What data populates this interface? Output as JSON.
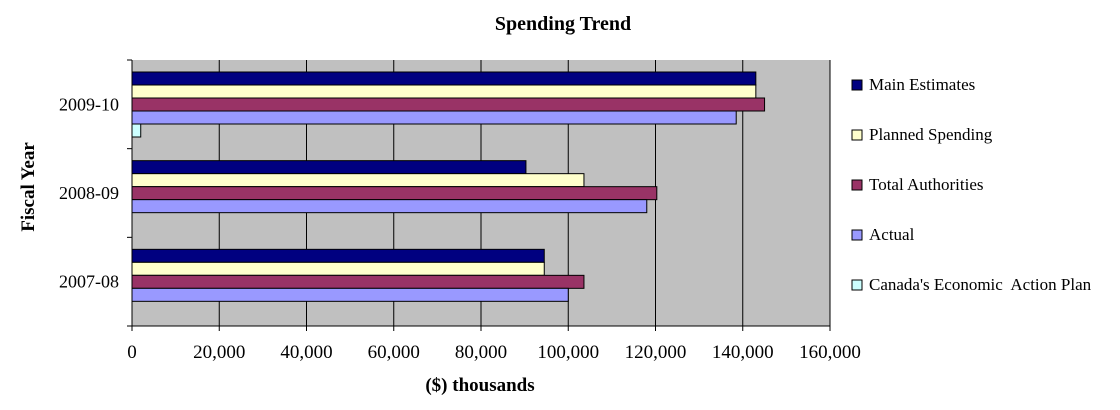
{
  "chart_data": {
    "type": "bar",
    "orientation": "horizontal",
    "title": "Spending Trend",
    "xlabel": "($) thousands",
    "ylabel": "Fiscal Year",
    "categories": [
      "2007-08",
      "2008-09",
      "2009-10"
    ],
    "series": [
      {
        "name": "Main Estimates",
        "color": "#000080",
        "values": [
          94500,
          90300,
          143000
        ]
      },
      {
        "name": "Planned Spending",
        "color": "#FFFFCC",
        "values": [
          94500,
          103600,
          143000
        ]
      },
      {
        "name": "Total Authorities",
        "color": "#993366",
        "values": [
          103600,
          120300,
          145000
        ]
      },
      {
        "name": "Actual",
        "color": "#9999FF",
        "values": [
          100000,
          118000,
          138500
        ]
      },
      {
        "name": "Canada's Economic  Action Plan",
        "color": "#CCFFFF",
        "values": [
          0,
          0,
          2000
        ]
      }
    ],
    "xlim": [
      0,
      160000
    ],
    "xticks": [
      0,
      20000,
      40000,
      60000,
      80000,
      100000,
      120000,
      140000,
      160000
    ],
    "xtick_labels": [
      "0",
      "20,000",
      "40,000",
      "60,000",
      "80,000",
      "100,000",
      "120,000",
      "140,000",
      "160,000"
    ],
    "grid": "vertical major",
    "plot_background": "#C0C0C0",
    "legend_position": "right"
  }
}
